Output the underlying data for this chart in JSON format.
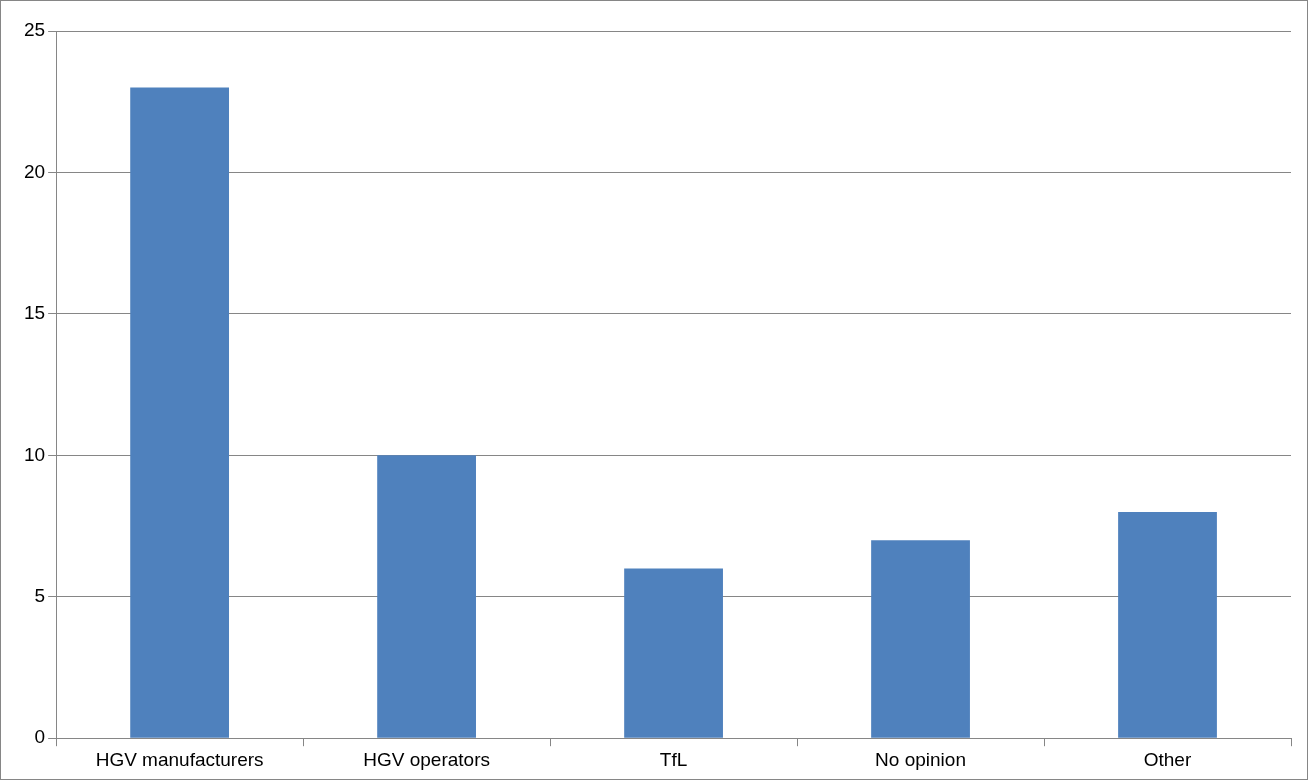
{
  "chart_data": {
    "type": "bar",
    "categories": [
      "HGV manufacturers",
      "HGV operators",
      "TfL",
      "No opinion",
      "Other"
    ],
    "values": [
      23,
      10,
      6,
      7,
      8
    ],
    "color": "#4f81bd",
    "ylim": [
      0,
      25
    ],
    "yticks": [
      0,
      5,
      10,
      15,
      20,
      25
    ],
    "grid": "y",
    "legend": false
  }
}
